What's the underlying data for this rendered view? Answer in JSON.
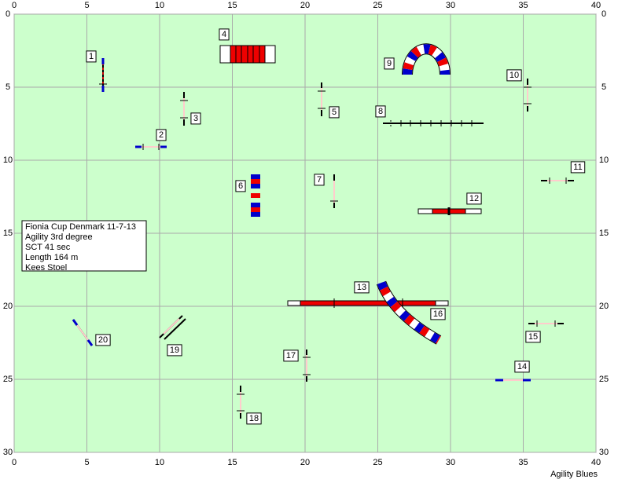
{
  "axes": {
    "x_ticks": [
      0,
      5,
      10,
      15,
      20,
      25,
      30,
      35,
      40
    ],
    "y_ticks": [
      0,
      5,
      10,
      15,
      20,
      25,
      30
    ],
    "x_range": [
      0,
      40
    ],
    "y_range": [
      0,
      30
    ]
  },
  "obstacles": [
    {
      "label": "1"
    },
    {
      "label": "2"
    },
    {
      "label": "3"
    },
    {
      "label": "4"
    },
    {
      "label": "5"
    },
    {
      "label": "6"
    },
    {
      "label": "7"
    },
    {
      "label": "8"
    },
    {
      "label": "9"
    },
    {
      "label": "10"
    },
    {
      "label": "11"
    },
    {
      "label": "12"
    },
    {
      "label": "13"
    },
    {
      "label": "14"
    },
    {
      "label": "15"
    },
    {
      "label": "16"
    },
    {
      "label": "17"
    },
    {
      "label": "18"
    },
    {
      "label": "19"
    },
    {
      "label": "20"
    }
  ],
  "info": [
    "Fionia Cup Denmark 11-7-13",
    "Agility 3rd degree",
    "SCT 41 sec",
    "Length 164 m",
    "Kees Stoel"
  ],
  "footer": "Agility Blues"
}
